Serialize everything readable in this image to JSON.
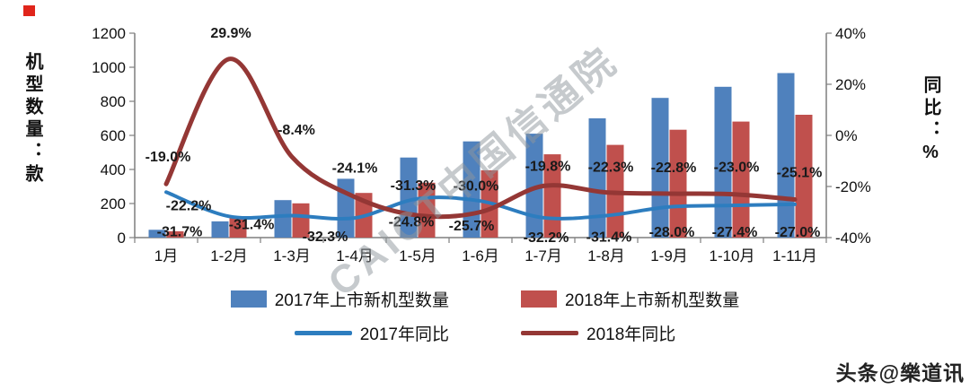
{
  "page": {
    "watermark": "CAICT中国信通院",
    "footer_credit": "头条@樂道讯"
  },
  "chart_data": {
    "type": "combo-bar-line",
    "categories": [
      "1月",
      "1-2月",
      "1-3月",
      "1-4月",
      "1-5月",
      "1-6月",
      "1-7月",
      "1-8月",
      "1-9月",
      "1-10月",
      "1-11月"
    ],
    "left_axis": {
      "title": "机型数量：款",
      "min": 0,
      "max": 1200,
      "step": 200
    },
    "right_axis": {
      "title": "同比：%",
      "min": -40,
      "max": 40,
      "step": 20,
      "suffix": "%"
    },
    "bar_series": [
      {
        "name": "2017年上市新机型数量",
        "color": "#4f81bd",
        "values": [
          46,
          95,
          220,
          345,
          470,
          565,
          610,
          700,
          820,
          885,
          966
        ]
      },
      {
        "name": "2018年上市新机型数量",
        "color": "#c0504d",
        "values": [
          37,
          124,
          201,
          262,
          322,
          395,
          489,
          544,
          633,
          681,
          721
        ]
      }
    ],
    "line_series": [
      {
        "name": "2017年同比",
        "color": "#2d7dbf",
        "values": [
          -22.2,
          -31.7,
          -31.4,
          -32.3,
          -24.8,
          -25.7,
          -32.2,
          -31.4,
          -28.0,
          -27.4,
          -27.0
        ]
      },
      {
        "name": "2018年同比",
        "color": "#943735",
        "values": [
          -19.0,
          29.9,
          -8.4,
          -24.1,
          -31.3,
          -30.0,
          -19.8,
          -22.3,
          -22.8,
          -23.0,
          -25.1
        ]
      }
    ],
    "label_suffix": "%",
    "legend_position": "bottom",
    "grid": false
  }
}
